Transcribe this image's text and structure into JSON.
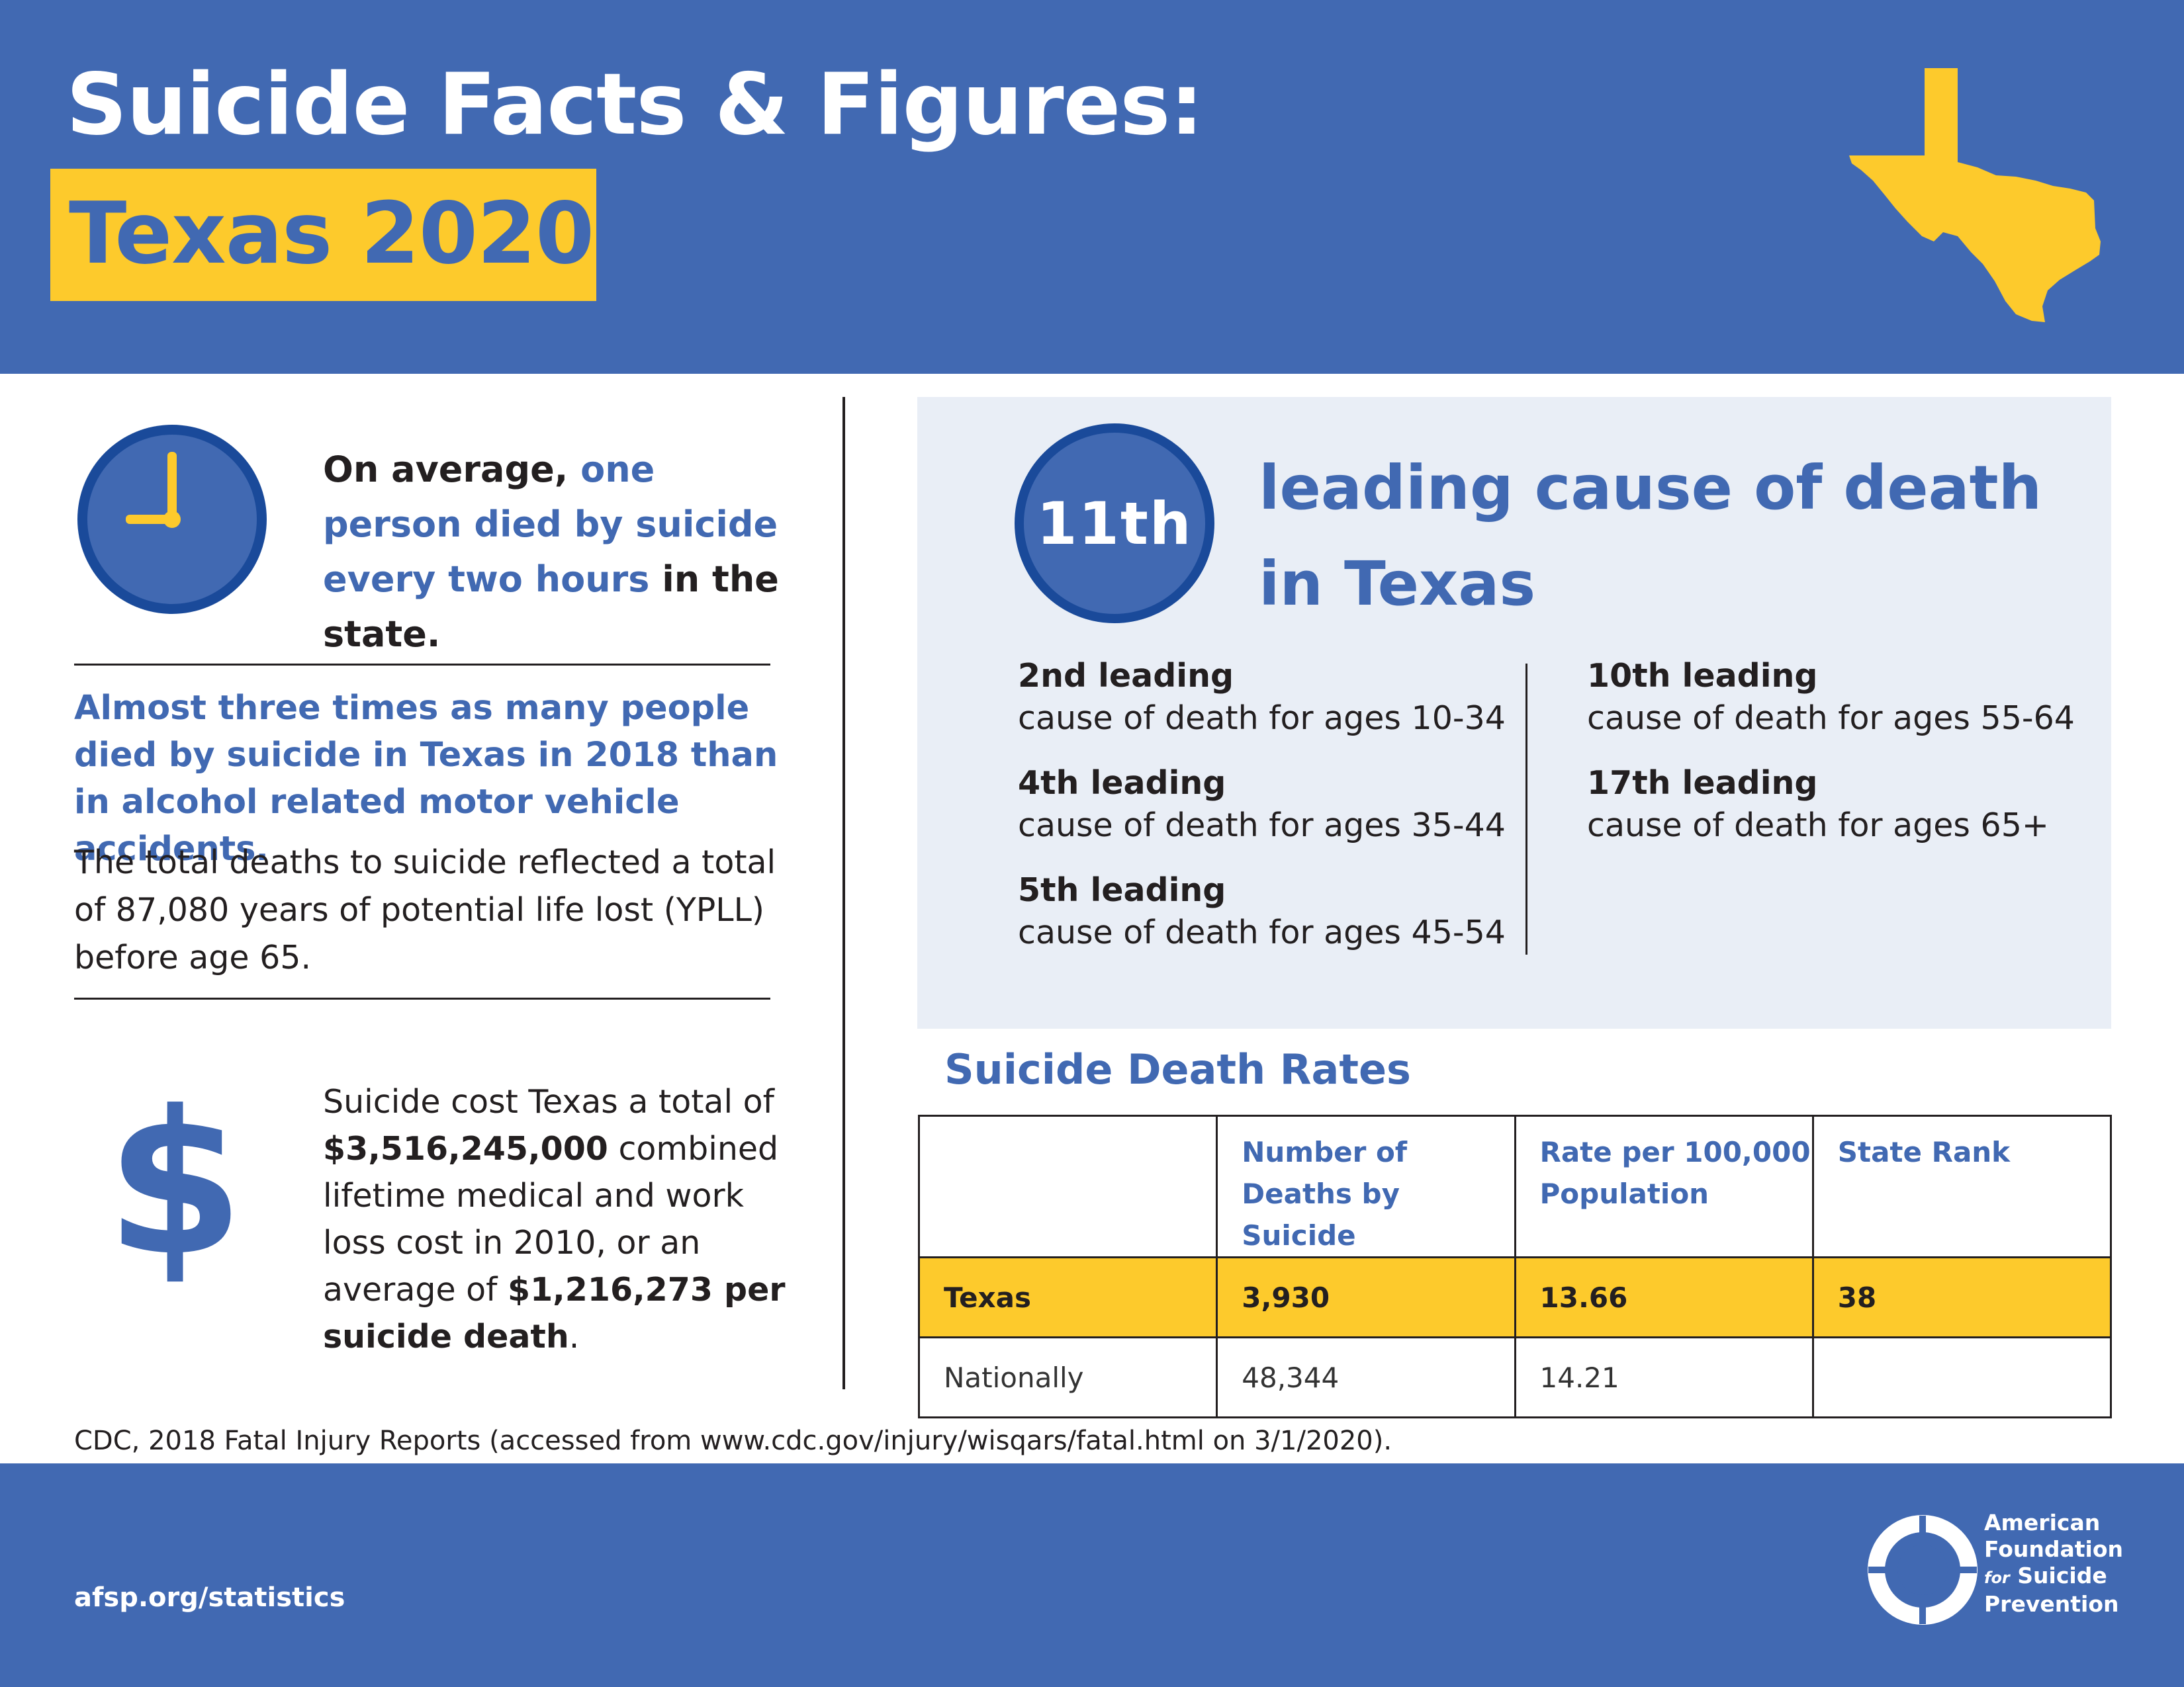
{
  "header": {
    "title_line1": "Suicide Facts & Figures:",
    "title_line2": "Texas 2020",
    "colors": {
      "blue": "#4169b2",
      "yellow": "#fdca2c"
    },
    "map_icon": "texas-state-map"
  },
  "left": {
    "clock_icon": "clock-icon",
    "average": {
      "lead": "On average,",
      "highlight": "one person died by suicide every two hours",
      "tail": "in the state."
    },
    "almost_text": "Almost three times as many people died by suicide in Texas in 2018 than in alcohol related motor vehicle accidents.",
    "ypll_text": "The total deaths to suicide reflected a total of 87,080 years of potential life lost (YPLL) before age 65.",
    "dollar_icon": "dollar-sign-icon",
    "dollar_symbol": "$",
    "cost": {
      "t1": "Suicide cost Texas a total of",
      "amount": "$3,516,245,000",
      "t2": "combined lifetime medical and work loss cost in 2010, or an average of",
      "per_death": "$1,216,273 per suicide death",
      "t3": "."
    }
  },
  "rank": {
    "number": "11th",
    "heading_line1": "leading cause of death",
    "heading_line2": "in Texas",
    "items": [
      {
        "rank": "2nd leading",
        "desc": "cause of death for ages 10-34"
      },
      {
        "rank": "4th leading",
        "desc": "cause of death for ages 35-44"
      },
      {
        "rank": "5th leading",
        "desc": "cause of death for ages 45-54"
      },
      {
        "rank": "10th leading",
        "desc": "cause of death for ages 55-64"
      },
      {
        "rank": "17th leading",
        "desc": "cause of death for ages 65+"
      }
    ]
  },
  "rates": {
    "title": "Suicide Death Rates",
    "headers": [
      "",
      "Number of Deaths by Suicide",
      "Rate per 100,000 Population",
      "State Rank"
    ],
    "rows": [
      {
        "label": "Texas",
        "deaths": "3,930",
        "rate": "13.66",
        "rank": "38",
        "highlight": true
      },
      {
        "label": "Nationally",
        "deaths": "48,344",
        "rate": "14.21",
        "rank": "",
        "highlight": false
      }
    ]
  },
  "source": "CDC, 2018 Fatal Injury Reports (accessed from www.cdc.gov/injury/wisqars/fatal.html on 3/1/2020).",
  "footer": {
    "url": "afsp.org/statistics",
    "logo_icon": "life-preserver-logo",
    "org_line1": "American",
    "org_line2": "Foundation",
    "org_for": "for",
    "org_line3": "Suicide",
    "org_line4": "Prevention"
  }
}
